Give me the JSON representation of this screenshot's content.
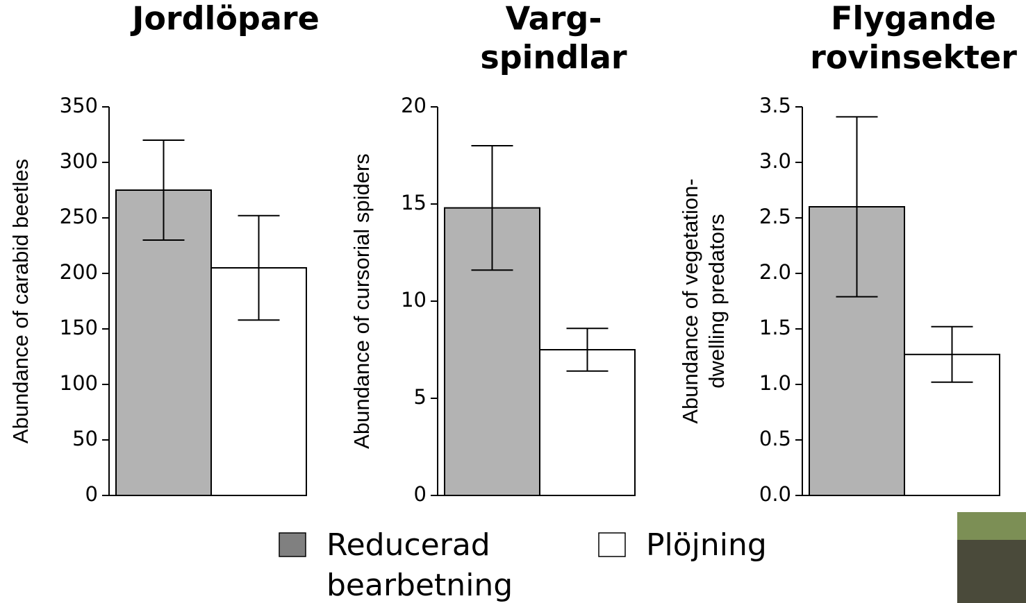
{
  "chart_data": [
    {
      "type": "bar",
      "title": [
        "Jordlöpare"
      ],
      "ylabel": [
        "Abundance of carabid beetles"
      ],
      "ylim": [
        0,
        350
      ],
      "yticks": [
        0,
        50,
        100,
        150,
        200,
        250,
        300,
        350
      ],
      "series": [
        {
          "color": "#b3b3b3",
          "values": [
            275
          ],
          "errors": [
            45
          ]
        },
        {
          "color": "#ffffff",
          "values": [
            205
          ],
          "errors": [
            47
          ]
        }
      ]
    },
    {
      "type": "bar",
      "title": [
        "Varg-",
        "spindlar"
      ],
      "ylabel": [
        "Abundance of cursorial spiders"
      ],
      "ylim": [
        0,
        20
      ],
      "yticks": [
        0,
        5,
        10,
        15,
        20
      ],
      "series": [
        {
          "color": "#b3b3b3",
          "values": [
            14.8
          ],
          "errors": [
            3.2
          ]
        },
        {
          "color": "#ffffff",
          "values": [
            7.5
          ],
          "errors": [
            1.1
          ]
        }
      ]
    },
    {
      "type": "bar",
      "title": [
        "Flygande",
        "rovinsekter"
      ],
      "ylabel": [
        "Abundance of vegetation-",
        "dwelling predators"
      ],
      "ylim": [
        0,
        3.5
      ],
      "yticks": [
        {
          "value": 0,
          "label": "0.0"
        },
        0.5,
        {
          "value": 1,
          "label": "1.0"
        },
        1.5,
        {
          "value": 2,
          "label": "2.0"
        },
        2.5,
        {
          "value": 3,
          "label": "3.0"
        },
        3.5
      ],
      "series": [
        {
          "color": "#b3b3b3",
          "values": [
            2.6
          ],
          "errors": [
            0.81
          ]
        },
        {
          "color": "#ffffff",
          "values": [
            1.27
          ],
          "errors": [
            0.25
          ]
        }
      ]
    }
  ],
  "legend": [
    {
      "name": [
        "Reducerad",
        "bearbetning"
      ],
      "color": "#808080"
    },
    {
      "name": [
        "Plöjning"
      ],
      "color": "#ffffff"
    }
  ]
}
